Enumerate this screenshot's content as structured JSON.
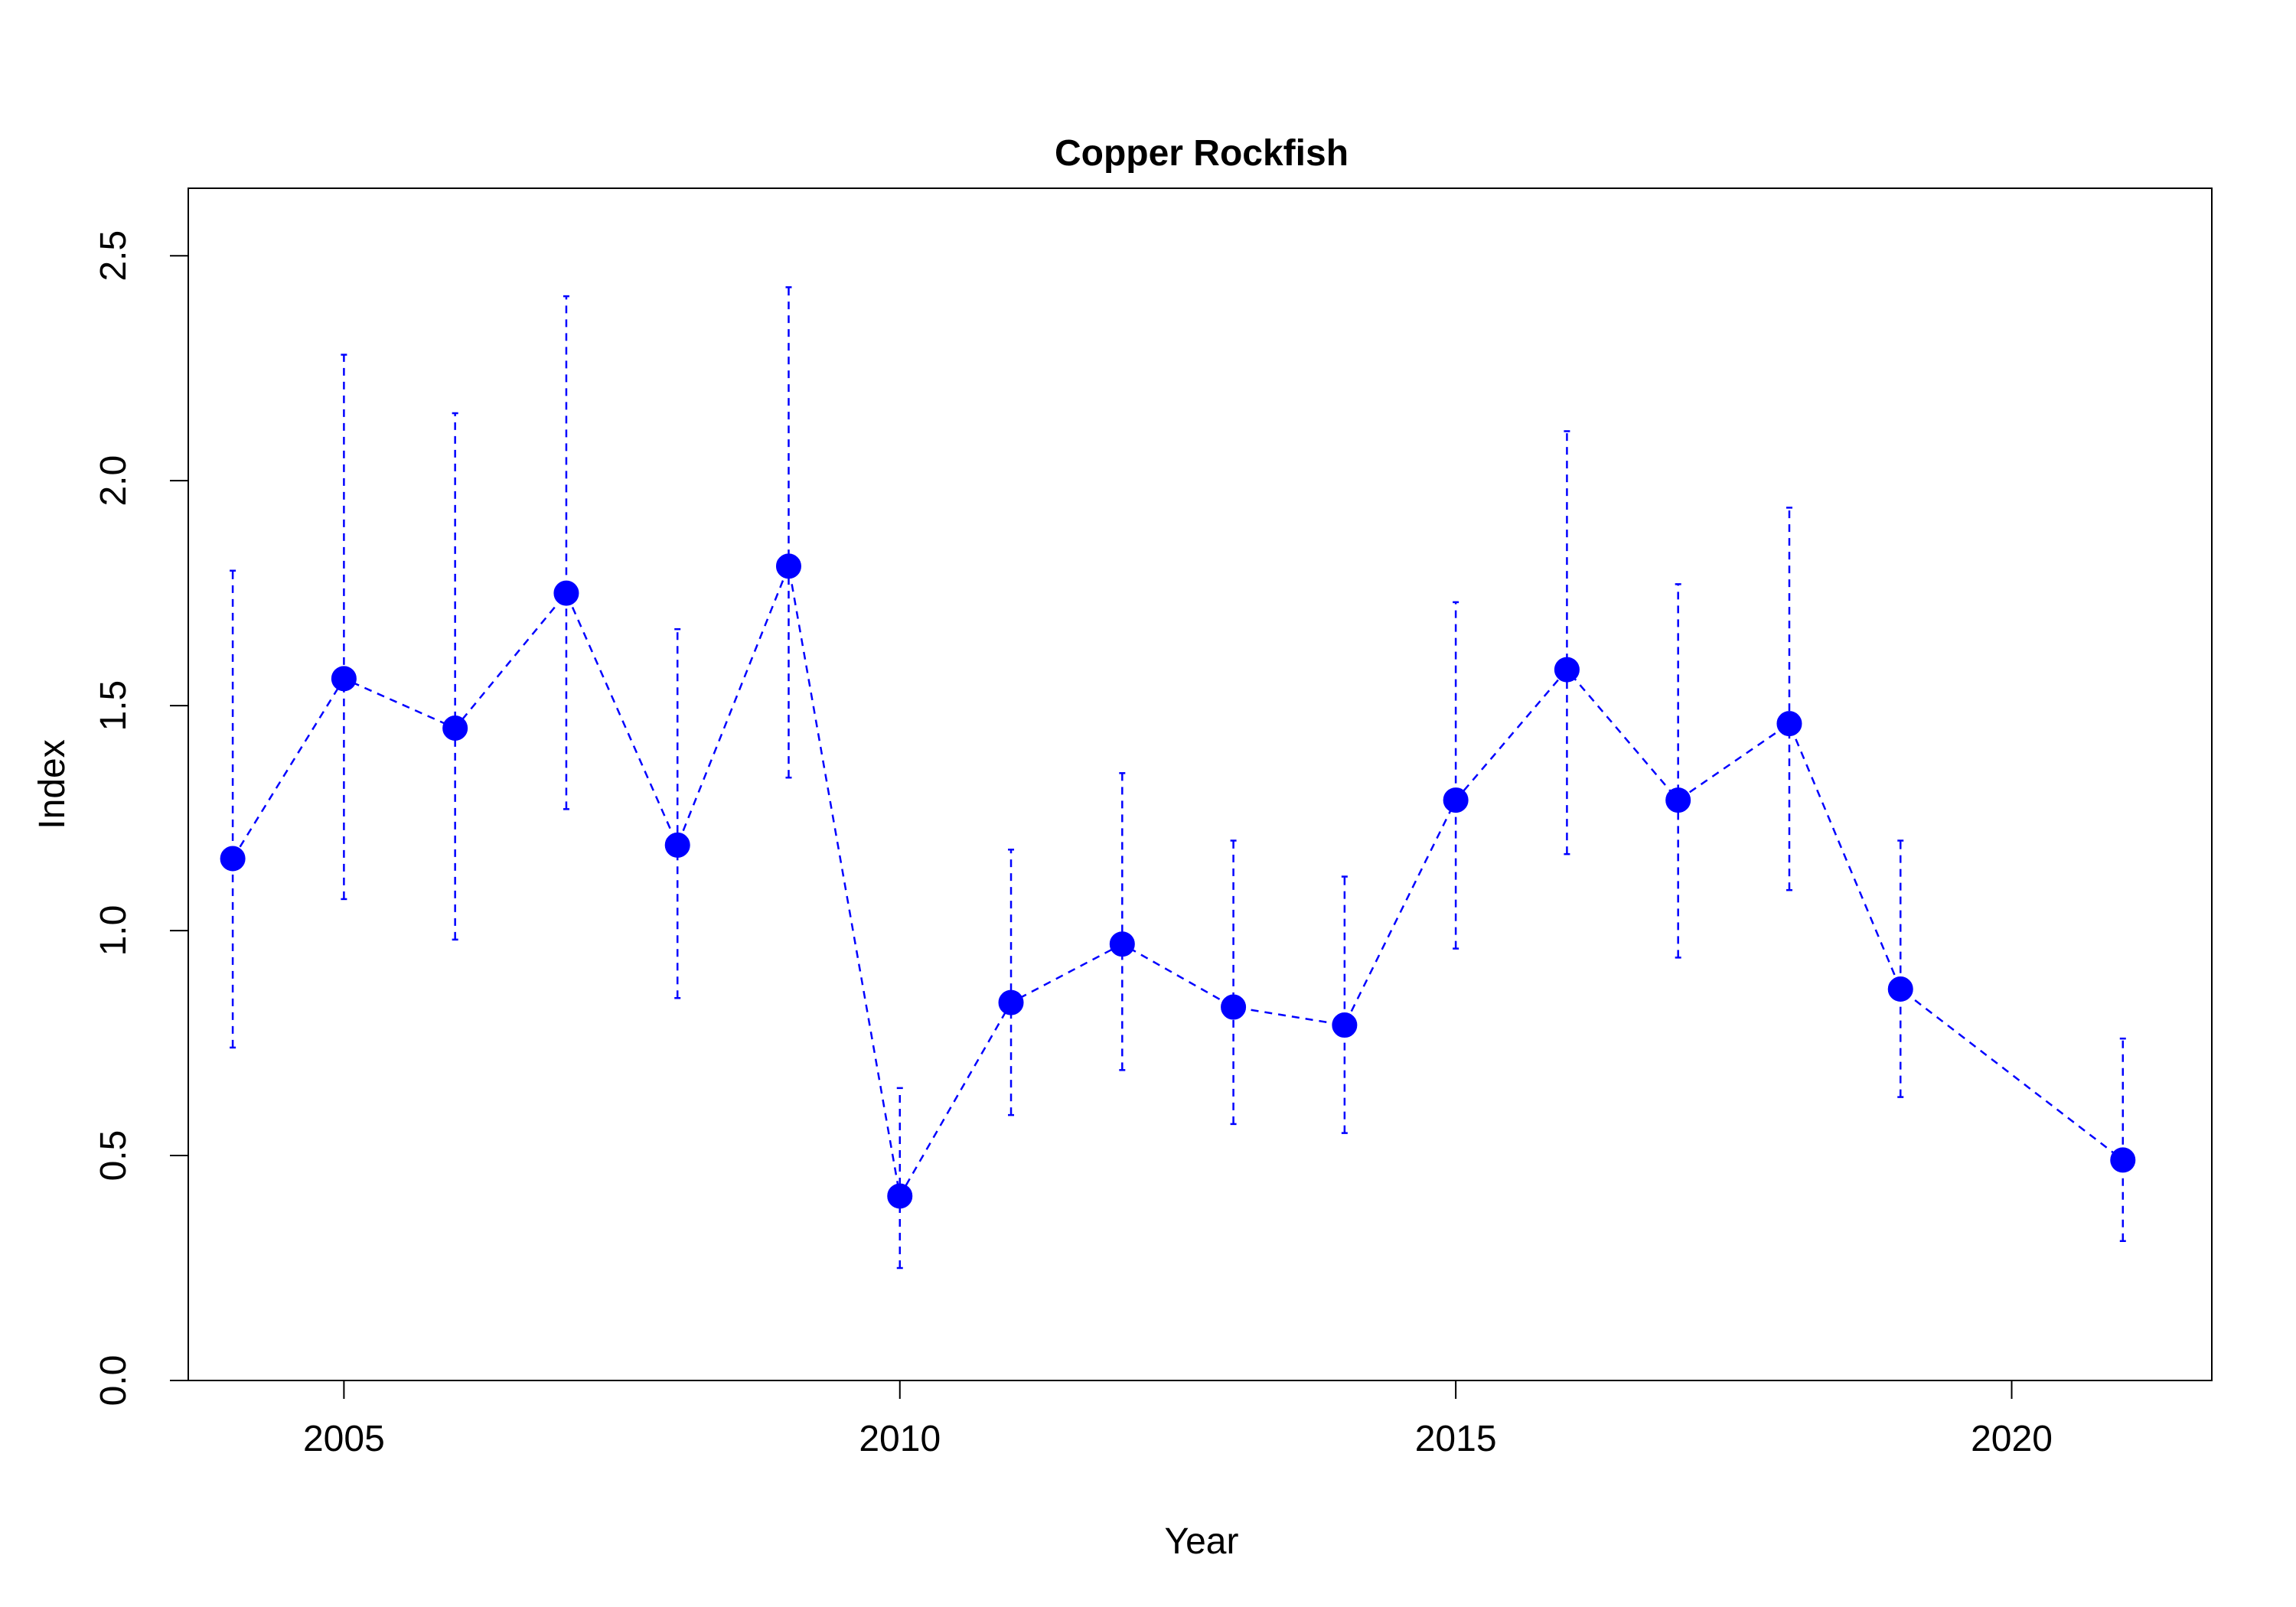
{
  "chart_data": {
    "type": "scatter",
    "title": "Copper Rockfish",
    "xlabel": "Year",
    "ylabel": "Index",
    "xlim": [
      2003.6,
      2021.8
    ],
    "ylim": [
      0,
      2.65
    ],
    "x_ticks": [
      2005,
      2010,
      2015,
      2020
    ],
    "x_tick_labels": [
      "2005",
      "2010",
      "2015",
      "2020"
    ],
    "y_ticks": [
      0,
      0.5,
      1,
      1.5,
      2,
      2.5
    ],
    "y_tick_labels": [
      "0.0",
      "0.5",
      "1.0",
      "1.5",
      "2.0",
      "2.5"
    ],
    "grid": false,
    "series": [
      {
        "color": "#0000ff",
        "marker": "filled-circle",
        "line_style": "dashed",
        "x": [
          2004,
          2005,
          2006,
          2007,
          2008,
          2009,
          2010,
          2011,
          2012,
          2013,
          2014,
          2015,
          2016,
          2017,
          2018,
          2019,
          2021
        ],
        "y": [
          1.16,
          1.56,
          1.45,
          1.75,
          1.19,
          1.81,
          0.41,
          0.84,
          0.97,
          0.83,
          0.79,
          1.29,
          1.58,
          1.29,
          1.46,
          0.87,
          0.49
        ],
        "lower": [
          0.74,
          1.07,
          0.98,
          1.27,
          0.85,
          1.34,
          0.25,
          0.59,
          0.69,
          0.57,
          0.55,
          0.96,
          1.17,
          0.94,
          1.09,
          0.63,
          0.31
        ],
        "upper": [
          1.8,
          2.28,
          2.15,
          2.41,
          1.67,
          2.43,
          0.65,
          1.18,
          1.35,
          1.2,
          1.12,
          1.73,
          2.11,
          1.77,
          1.94,
          1.2,
          0.76
        ]
      }
    ]
  }
}
